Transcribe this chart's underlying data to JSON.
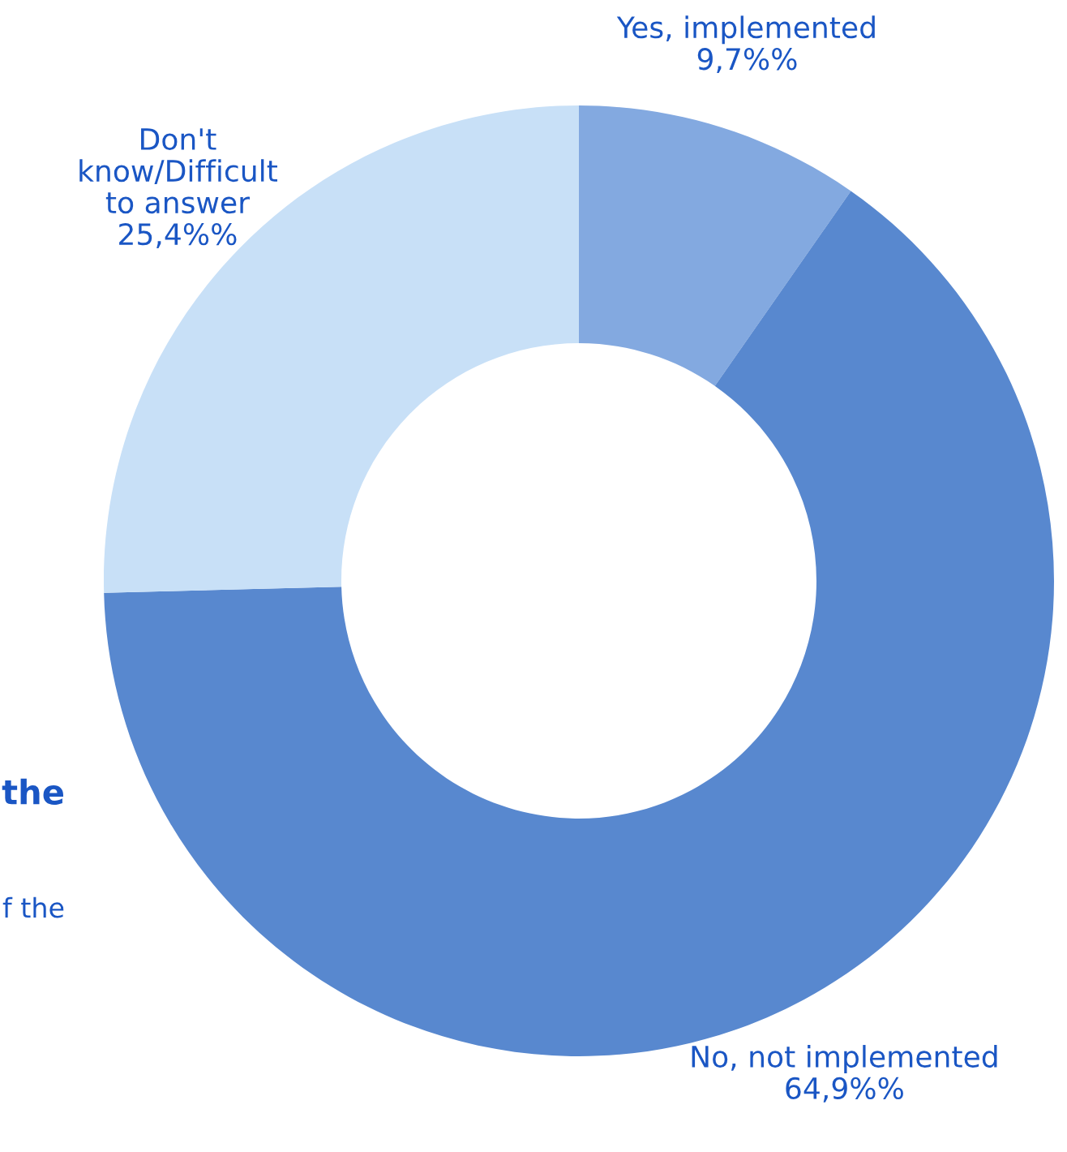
{
  "chart_data": {
    "type": "donut",
    "categories": [
      "Yes, implemented",
      "No, not implemented",
      "Don't\nknow/Difficult\nto answer"
    ],
    "values": [
      9.7,
      64.9,
      25.4
    ],
    "value_labels": [
      "9,7%%",
      "64,9%%",
      "25,4%%"
    ],
    "colors": [
      "#83a9e0",
      "#5888cf",
      "#c8e0f7"
    ],
    "annotations": [
      "the",
      "f the"
    ],
    "legend": false
  }
}
